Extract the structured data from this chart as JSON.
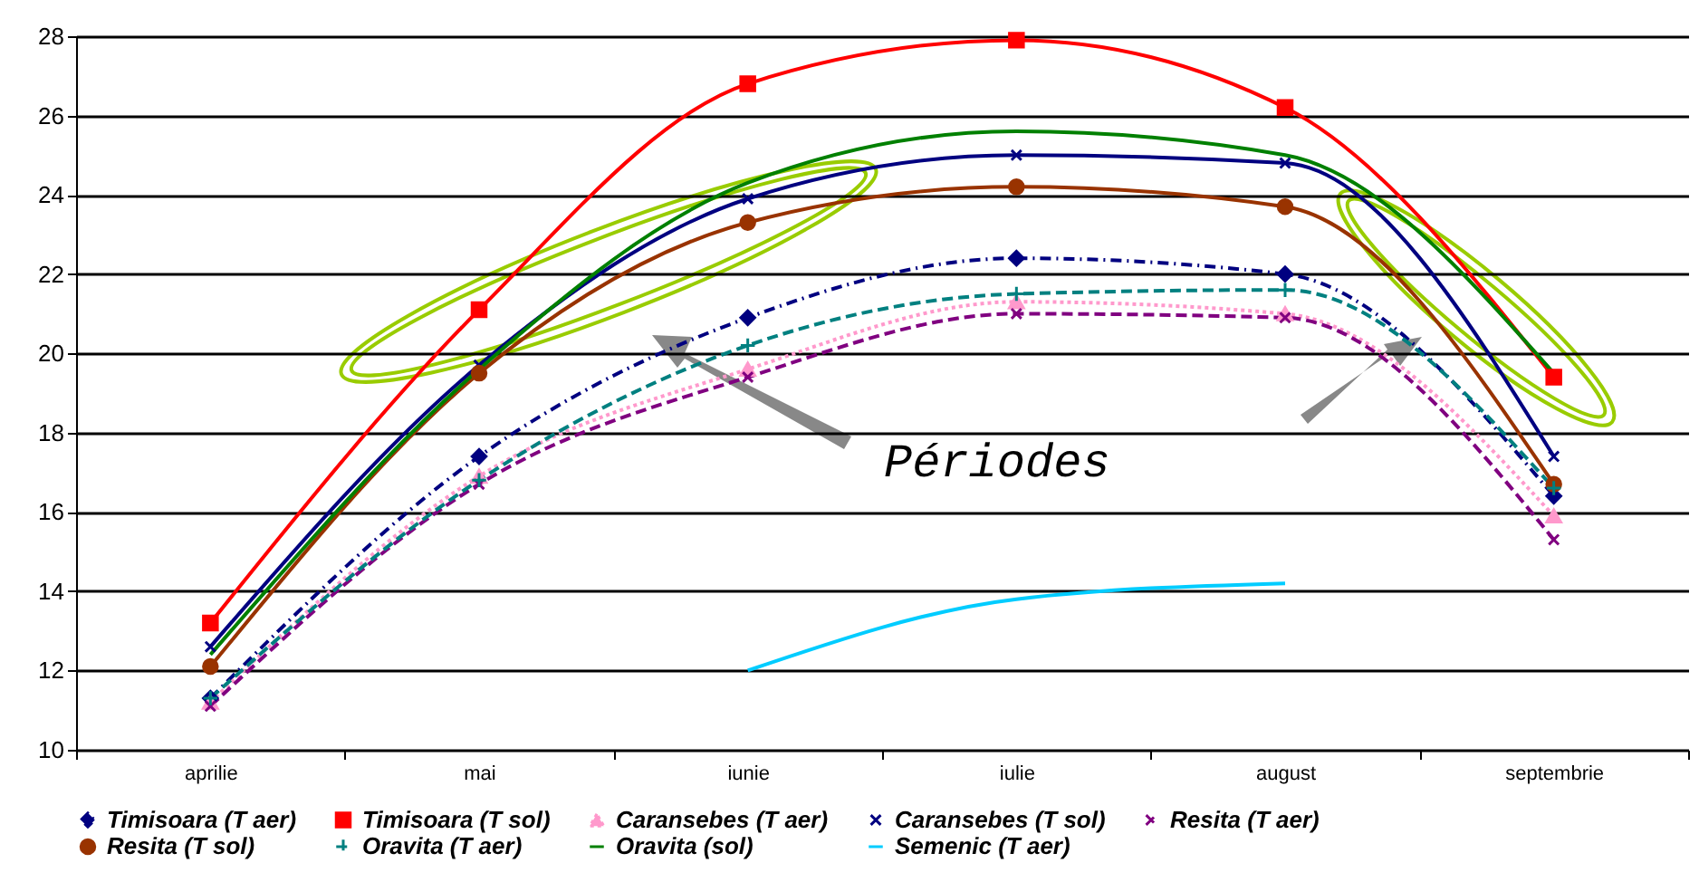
{
  "chart_data": {
    "type": "line",
    "categories": [
      "aprilie",
      "mai",
      "iunie",
      "iulie",
      "august",
      "septembrie"
    ],
    "ylim": [
      10,
      28
    ],
    "yticks": [
      10,
      12,
      14,
      16,
      18,
      20,
      22,
      24,
      26,
      28
    ],
    "grid": "y",
    "legend": "bottom",
    "annotations": [
      "Périodes"
    ],
    "series": [
      {
        "name": "Timisoara (T aer)",
        "color": "#000080",
        "marker": "diamond",
        "line_style": "dashdot",
        "values": [
          11.3,
          17.4,
          20.9,
          22.4,
          22.0,
          16.4
        ]
      },
      {
        "name": "Timisoara (T sol)",
        "color": "#ff0000",
        "marker": "square",
        "line_style": "solid",
        "values": [
          13.2,
          21.1,
          26.8,
          27.9,
          26.2,
          19.4
        ]
      },
      {
        "name": "Caransebes (T aer)",
        "color": "#ff99cc",
        "marker": "triangle",
        "line_style": "dotted",
        "values": [
          11.2,
          16.9,
          19.6,
          21.3,
          21.0,
          15.9
        ]
      },
      {
        "name": "Caransebes (T sol)",
        "color": "#000080",
        "marker": "cross",
        "line_style": "solid",
        "values": [
          12.6,
          19.7,
          23.9,
          25.0,
          24.8,
          17.4
        ]
      },
      {
        "name": "Resita (T aer)",
        "color": "#800080",
        "marker": "cross",
        "line_style": "dashed",
        "values": [
          11.1,
          16.7,
          19.4,
          21.0,
          20.9,
          15.3
        ]
      },
      {
        "name": "Resita (T sol)",
        "color": "#993300",
        "marker": "circle",
        "line_style": "solid",
        "values": [
          12.1,
          19.5,
          23.3,
          24.2,
          23.7,
          16.7
        ]
      },
      {
        "name": "Oravita (T aer)",
        "color": "#008080",
        "marker": "plus",
        "line_style": "dashed",
        "values": [
          11.3,
          16.8,
          20.2,
          21.5,
          21.6,
          16.6
        ]
      },
      {
        "name": "Oravita (sol)",
        "color": "#008000",
        "marker": "none",
        "line_style": "solid",
        "values": [
          12.4,
          19.6,
          24.3,
          25.6,
          25.0,
          19.5
        ]
      },
      {
        "name": "Semenic (T aer)",
        "color": "#00ccff",
        "marker": "none",
        "line_style": "solid",
        "values": [
          null,
          null,
          12.0,
          13.8,
          14.2,
          null
        ]
      }
    ]
  }
}
